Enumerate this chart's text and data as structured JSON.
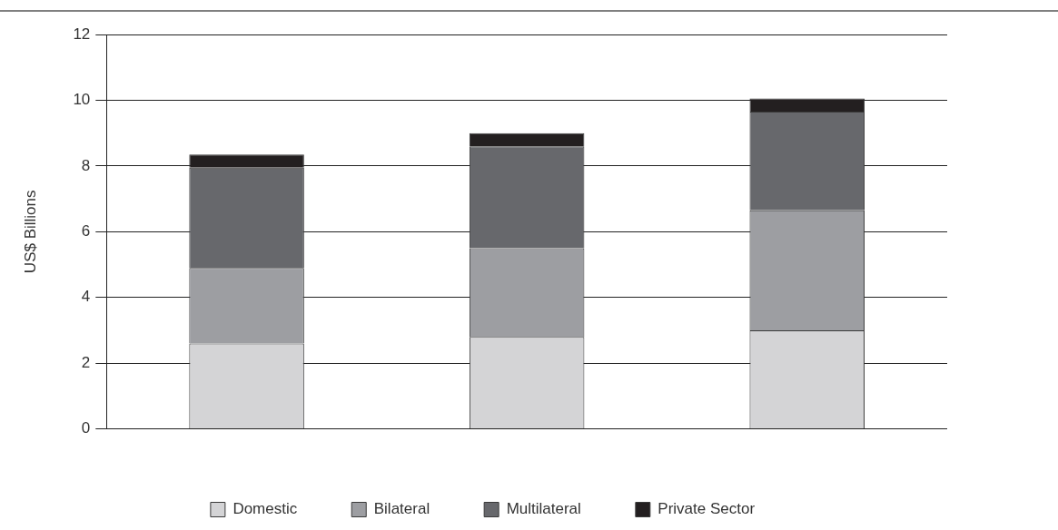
{
  "chart_data": {
    "type": "bar",
    "ylabel": "US$ Billions",
    "categories": [
      null,
      null,
      null
    ],
    "stacked": true,
    "series": [
      {
        "name": "Domestic",
        "color": "#d4d4d6",
        "values": [
          2.6,
          2.8,
          3.0
        ]
      },
      {
        "name": "Bilateral",
        "color": "#9d9ea2",
        "values": [
          2.3,
          2.7,
          3.65
        ]
      },
      {
        "name": "Multilateral",
        "color": "#67686c",
        "values": [
          3.05,
          3.1,
          3.0
        ]
      },
      {
        "name": "Private Sector",
        "color": "#231f20",
        "values": [
          0.4,
          0.4,
          0.4
        ]
      }
    ],
    "ylim": [
      0,
      12
    ],
    "yticks": [
      0,
      2,
      4,
      6,
      8,
      10,
      12
    ],
    "grid": "y",
    "legend": "bottom"
  }
}
